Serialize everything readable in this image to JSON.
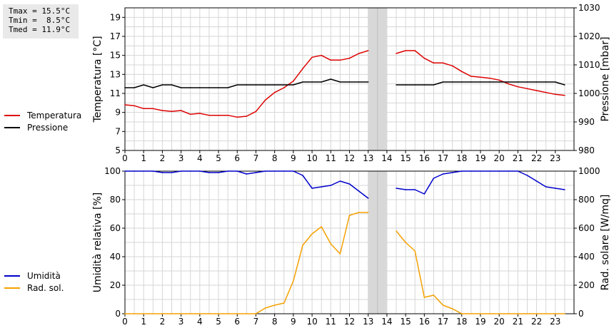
{
  "stats": {
    "tmax": "Tmax = 15.5°C",
    "tmin": "Tmin =  8.5°C",
    "tmed": "Tmed = 11.9°C"
  },
  "colors": {
    "temperature": "#dd0000",
    "pressure": "#000000",
    "humidity": "#0000cc",
    "solar": "#f5a000",
    "gap": "#d8d8d8",
    "grid": "#d6d6d6"
  },
  "legend_top": [
    {
      "label": "Temperatura",
      "color": "#dd0000"
    },
    {
      "label": "Pressione",
      "color": "#000000"
    }
  ],
  "legend_bottom": [
    {
      "label": "Umidità",
      "color": "#0000cc"
    },
    {
      "label": "Rad. sol.",
      "color": "#f5a000"
    }
  ],
  "chart_data": [
    {
      "type": "line",
      "ylabel": "Temperatura [°C]",
      "ylabel_right": "Pressione [mbar]",
      "xlim": [
        0,
        24
      ],
      "ylim": [
        5,
        20
      ],
      "ylim_right": [
        980,
        1030
      ],
      "yticks": [
        "5",
        "7",
        "9",
        "11",
        "13",
        "15",
        "17",
        "19"
      ],
      "yticks_right": [
        "980",
        "990",
        "1000",
        "1010",
        "1020",
        "1030"
      ],
      "xticks": [
        "0",
        "1",
        "2",
        "3",
        "4",
        "5",
        "6",
        "7",
        "8",
        "9",
        "10",
        "11",
        "12",
        "13",
        "14",
        "15",
        "16",
        "17",
        "18",
        "19",
        "20",
        "21",
        "22",
        "23"
      ],
      "grid": true,
      "missing_data_band": [
        13,
        14
      ],
      "series": [
        {
          "name": "Temperatura",
          "axis": "left",
          "x": [
            0,
            0.5,
            1,
            1.5,
            2,
            2.5,
            3,
            3.5,
            4,
            4.5,
            5,
            5.5,
            6,
            6.5,
            7,
            7.5,
            8,
            8.5,
            9,
            9.5,
            10,
            10.5,
            11,
            11.5,
            12,
            12.5,
            13,
            14.5,
            15,
            15.5,
            16,
            16.5,
            17,
            17.5,
            18,
            18.5,
            19,
            19.5,
            20,
            20.5,
            21,
            21.5,
            22,
            22.5,
            23,
            23.5
          ],
          "y": [
            9.8,
            9.7,
            9.4,
            9.4,
            9.2,
            9.1,
            9.2,
            8.8,
            8.9,
            8.7,
            8.7,
            8.7,
            8.5,
            8.6,
            9.1,
            10.3,
            11.1,
            11.6,
            12.3,
            13.6,
            14.8,
            15.0,
            14.5,
            14.5,
            14.7,
            15.2,
            15.5,
            15.2,
            15.5,
            15.5,
            14.7,
            14.2,
            14.2,
            13.9,
            13.3,
            12.8,
            12.7,
            12.6,
            12.4,
            12.0,
            11.7,
            11.5,
            11.3,
            11.1,
            10.9,
            10.8
          ]
        },
        {
          "name": "Pressione",
          "axis": "right",
          "x": [
            0,
            0.5,
            1,
            1.5,
            2,
            2.5,
            3,
            3.5,
            4,
            4.5,
            5,
            5.5,
            6,
            6.5,
            7,
            7.5,
            8,
            8.5,
            9,
            9.5,
            10,
            10.5,
            11,
            11.5,
            12,
            12.5,
            13,
            14.5,
            15,
            15.5,
            16,
            16.5,
            17,
            17.5,
            18,
            18.5,
            19,
            19.5,
            20,
            20.5,
            21,
            21.5,
            22,
            22.5,
            23,
            23.5
          ],
          "y": [
            1002,
            1002,
            1003,
            1002,
            1003,
            1003,
            1002,
            1002,
            1002,
            1002,
            1002,
            1002,
            1003,
            1003,
            1003,
            1003,
            1003,
            1003,
            1003,
            1004,
            1004,
            1004,
            1005,
            1004,
            1004,
            1004,
            1004,
            1003,
            1003,
            1003,
            1003,
            1003,
            1004,
            1004,
            1004,
            1004,
            1004,
            1004,
            1004,
            1004,
            1004,
            1004,
            1004,
            1004,
            1004,
            1003
          ]
        }
      ]
    },
    {
      "type": "line",
      "ylabel": "Umidità relativa [%]",
      "ylabel_right": "Rad. solare [W/mq]",
      "xlim": [
        0,
        24
      ],
      "ylim": [
        0,
        100
      ],
      "ylim_right": [
        0,
        1000
      ],
      "yticks": [
        "0",
        "20",
        "40",
        "60",
        "80",
        "100"
      ],
      "yticks_right": [
        "0",
        "200",
        "400",
        "600",
        "800",
        "1000"
      ],
      "xticks": [
        "0",
        "1",
        "2",
        "3",
        "4",
        "5",
        "6",
        "7",
        "8",
        "9",
        "10",
        "11",
        "12",
        "13",
        "14",
        "15",
        "16",
        "17",
        "18",
        "19",
        "20",
        "21",
        "22",
        "23"
      ],
      "grid": true,
      "missing_data_band": [
        13,
        14
      ],
      "series": [
        {
          "name": "Umidità",
          "axis": "left",
          "x": [
            0,
            0.5,
            1,
            1.5,
            2,
            2.5,
            3,
            3.5,
            4,
            4.5,
            5,
            5.5,
            6,
            6.5,
            7,
            7.5,
            8,
            8.5,
            9,
            9.5,
            10,
            10.5,
            11,
            11.5,
            12,
            12.5,
            13,
            14.5,
            15,
            15.5,
            16,
            16.5,
            17,
            17.5,
            18,
            18.5,
            19,
            19.5,
            20,
            20.5,
            21,
            21.5,
            22,
            22.5,
            23,
            23.5
          ],
          "y": [
            100,
            100,
            100,
            100,
            99,
            99,
            100,
            100,
            100,
            99,
            99,
            100,
            100,
            98,
            99,
            100,
            100,
            100,
            100,
            97,
            88,
            89,
            90,
            93,
            91,
            86,
            81,
            88,
            87,
            87,
            84,
            95,
            98,
            99,
            100,
            100,
            100,
            100,
            100,
            100,
            100,
            97,
            93,
            89,
            88,
            87
          ]
        },
        {
          "name": "Rad. sol.",
          "axis": "right",
          "x": [
            0,
            0.5,
            1,
            1.5,
            2,
            2.5,
            3,
            3.5,
            4,
            4.5,
            5,
            5.5,
            6,
            6.5,
            7,
            7.5,
            8,
            8.5,
            9,
            9.5,
            10,
            10.5,
            11,
            11.5,
            12,
            12.5,
            13,
            14.5,
            15,
            15.5,
            16,
            16.5,
            17,
            17.5,
            18,
            18.5,
            19,
            19.5,
            20,
            20.5,
            21,
            21.5,
            22,
            22.5,
            23,
            23.5
          ],
          "y": [
            0,
            0,
            0,
            0,
            0,
            0,
            0,
            0,
            0,
            0,
            0,
            0,
            0,
            0,
            0,
            40,
            60,
            75,
            230,
            480,
            560,
            610,
            490,
            420,
            690,
            710,
            710,
            580,
            500,
            440,
            115,
            130,
            60,
            35,
            0,
            0,
            0,
            0,
            0,
            0,
            0,
            0,
            0,
            0,
            0,
            0
          ]
        }
      ]
    }
  ]
}
